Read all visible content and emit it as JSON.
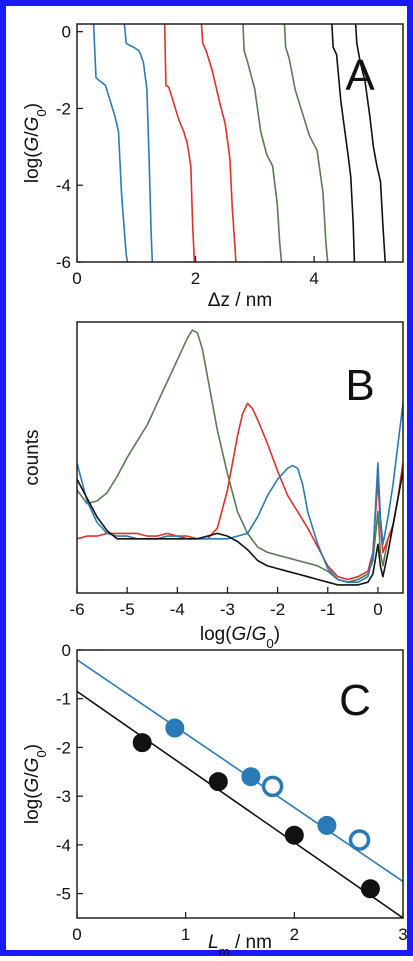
{
  "chart_data": [
    {
      "type": "line",
      "panel_label": "A",
      "xlabel": "Δz / nm",
      "ylabel": "log(G/G0)",
      "xlim": [
        0,
        5.5
      ],
      "ylim": [
        -6,
        0.2
      ],
      "xticks": [
        0,
        2,
        4
      ],
      "yticks": [
        0,
        -2,
        -4,
        -6
      ],
      "grid": false,
      "series": [
        {
          "color": "#2a7ab8",
          "x": [
            0.28,
            0.3,
            0.32,
            0.36,
            0.4,
            0.48,
            0.56,
            0.64,
            0.7,
            0.75,
            0.8,
            0.83,
            0.85
          ],
          "y": [
            0.2,
            -0.5,
            -1.2,
            -1.25,
            -1.3,
            -1.4,
            -1.8,
            -2.2,
            -2.6,
            -4.2,
            -5.2,
            -5.8,
            -6.0
          ]
        },
        {
          "color": "#2a7ab8",
          "x": [
            0.8,
            0.83,
            0.88,
            0.95,
            1.05,
            1.12,
            1.18,
            1.22,
            1.25,
            1.27
          ],
          "y": [
            0.2,
            -0.3,
            -0.35,
            -0.4,
            -0.5,
            -0.8,
            -1.5,
            -3.5,
            -5.2,
            -6.0
          ]
        },
        {
          "color": "#e0302a",
          "x": [
            1.48,
            1.5,
            1.55,
            1.62,
            1.72,
            1.8,
            1.86,
            1.92,
            1.95,
            1.98
          ],
          "y": [
            0.2,
            -1.4,
            -1.45,
            -1.8,
            -2.3,
            -2.6,
            -2.9,
            -3.5,
            -5.0,
            -6.0
          ]
        },
        {
          "color": "#e0302a",
          "x": [
            2.1,
            2.12,
            2.18,
            2.28,
            2.4,
            2.5,
            2.58,
            2.62,
            2.66,
            2.68
          ],
          "y": [
            0.2,
            -0.3,
            -0.5,
            -1.0,
            -1.8,
            -2.4,
            -3.3,
            -4.6,
            -5.5,
            -6.0
          ]
        },
        {
          "color": "#5a7a55",
          "x": [
            2.8,
            2.82,
            2.88,
            3.0,
            3.1,
            3.2,
            3.3,
            3.38,
            3.42,
            3.45
          ],
          "y": [
            0.2,
            -0.5,
            -0.8,
            -1.5,
            -2.6,
            -3.2,
            -3.5,
            -4.5,
            -5.5,
            -6.0
          ]
        },
        {
          "color": "#5a7a55",
          "x": [
            3.5,
            3.52,
            3.58,
            3.68,
            3.8,
            3.92,
            4.05,
            4.15,
            4.2,
            4.23
          ],
          "y": [
            0.2,
            -0.4,
            -0.7,
            -1.5,
            -2.1,
            -2.7,
            -3.1,
            -4.2,
            -5.5,
            -6.0
          ]
        },
        {
          "color": "#111111",
          "x": [
            4.3,
            4.32,
            4.38,
            4.45,
            4.52,
            4.58,
            4.62,
            4.66,
            4.68
          ],
          "y": [
            0.2,
            -0.4,
            -0.6,
            -1.8,
            -2.6,
            -3.3,
            -3.8,
            -5.0,
            -6.0
          ]
        },
        {
          "color": "#111111",
          "x": [
            4.7,
            4.72,
            4.78,
            4.86,
            4.94,
            5.0,
            5.06,
            5.12,
            5.16,
            5.2
          ],
          "y": [
            0.2,
            -0.3,
            -0.8,
            -1.3,
            -2.2,
            -3.0,
            -3.5,
            -3.9,
            -5.0,
            -6.0
          ]
        }
      ]
    },
    {
      "type": "line",
      "panel_label": "B",
      "xlabel": "log(G/G0)",
      "ylabel": "counts",
      "xlim": [
        -6,
        0.5
      ],
      "ylim": [
        0,
        1
      ],
      "xticks": [
        -6,
        -5,
        -4,
        -3,
        -2,
        -1,
        0
      ],
      "yticks": [],
      "grid": false,
      "series": [
        {
          "color": "#5a7a55",
          "x": [
            -6.0,
            -5.8,
            -5.6,
            -5.4,
            -5.2,
            -5.0,
            -4.8,
            -4.6,
            -4.4,
            -4.2,
            -4.0,
            -3.8,
            -3.7,
            -3.6,
            -3.5,
            -3.4,
            -3.2,
            -3.0,
            -2.8,
            -2.6,
            -2.4,
            -2.2,
            -2.0,
            -1.8,
            -1.6,
            -1.4,
            -1.2,
            -1.0,
            -0.8,
            -0.6,
            -0.4,
            -0.2,
            -0.1,
            0.0,
            0.05,
            0.1,
            0.2,
            0.3,
            0.4,
            0.5
          ],
          "y": [
            0.38,
            0.33,
            0.34,
            0.37,
            0.43,
            0.5,
            0.56,
            0.62,
            0.7,
            0.78,
            0.86,
            0.94,
            0.97,
            0.96,
            0.9,
            0.8,
            0.6,
            0.44,
            0.3,
            0.22,
            0.17,
            0.15,
            0.14,
            0.13,
            0.12,
            0.11,
            0.1,
            0.08,
            0.05,
            0.04,
            0.05,
            0.07,
            0.12,
            0.3,
            0.15,
            0.1,
            0.2,
            0.25,
            0.35,
            0.48
          ]
        },
        {
          "color": "#e0302a",
          "x": [
            -6.0,
            -5.8,
            -5.6,
            -5.4,
            -5.2,
            -5.0,
            -4.8,
            -4.6,
            -4.4,
            -4.2,
            -4.0,
            -3.8,
            -3.6,
            -3.4,
            -3.2,
            -3.0,
            -2.8,
            -2.7,
            -2.6,
            -2.5,
            -2.4,
            -2.2,
            -2.0,
            -1.8,
            -1.6,
            -1.4,
            -1.2,
            -1.0,
            -0.8,
            -0.6,
            -0.4,
            -0.2,
            -0.1,
            0.0,
            0.05,
            0.1,
            0.2,
            0.3,
            0.4,
            0.5
          ],
          "y": [
            0.2,
            0.21,
            0.21,
            0.22,
            0.22,
            0.22,
            0.22,
            0.21,
            0.21,
            0.22,
            0.21,
            0.21,
            0.2,
            0.2,
            0.24,
            0.38,
            0.58,
            0.66,
            0.7,
            0.68,
            0.64,
            0.55,
            0.45,
            0.36,
            0.3,
            0.24,
            0.17,
            0.1,
            0.06,
            0.05,
            0.06,
            0.08,
            0.15,
            0.42,
            0.25,
            0.15,
            0.2,
            0.25,
            0.35,
            0.48
          ]
        },
        {
          "color": "#2a7ab8",
          "x": [
            -6.0,
            -5.8,
            -5.6,
            -5.4,
            -5.2,
            -5.0,
            -4.8,
            -4.6,
            -4.4,
            -4.2,
            -4.0,
            -3.8,
            -3.6,
            -3.4,
            -3.2,
            -3.0,
            -2.8,
            -2.6,
            -2.4,
            -2.2,
            -2.0,
            -1.8,
            -1.7,
            -1.6,
            -1.5,
            -1.4,
            -1.2,
            -1.0,
            -0.8,
            -0.6,
            -0.4,
            -0.2,
            -0.1,
            0.0,
            0.05,
            0.1,
            0.2,
            0.3,
            0.4,
            0.5
          ],
          "y": [
            0.48,
            0.34,
            0.26,
            0.22,
            0.21,
            0.21,
            0.2,
            0.2,
            0.2,
            0.21,
            0.21,
            0.2,
            0.2,
            0.2,
            0.2,
            0.2,
            0.21,
            0.22,
            0.28,
            0.36,
            0.42,
            0.46,
            0.47,
            0.46,
            0.4,
            0.3,
            0.18,
            0.09,
            0.05,
            0.04,
            0.04,
            0.06,
            0.14,
            0.48,
            0.28,
            0.18,
            0.28,
            0.4,
            0.55,
            0.7
          ]
        },
        {
          "color": "#111111",
          "x": [
            -6.0,
            -5.8,
            -5.6,
            -5.4,
            -5.2,
            -5.0,
            -4.8,
            -4.6,
            -4.4,
            -4.2,
            -4.0,
            -3.8,
            -3.6,
            -3.4,
            -3.2,
            -3.0,
            -2.8,
            -2.6,
            -2.4,
            -2.2,
            -2.0,
            -1.8,
            -1.6,
            -1.4,
            -1.2,
            -1.0,
            -0.8,
            -0.6,
            -0.4,
            -0.2,
            -0.1,
            0.0,
            0.05,
            0.1,
            0.2,
            0.3,
            0.4,
            0.5
          ],
          "y": [
            0.42,
            0.35,
            0.28,
            0.23,
            0.2,
            0.2,
            0.2,
            0.2,
            0.2,
            0.2,
            0.2,
            0.2,
            0.2,
            0.21,
            0.22,
            0.21,
            0.19,
            0.16,
            0.12,
            0.1,
            0.09,
            0.08,
            0.07,
            0.06,
            0.05,
            0.04,
            0.03,
            0.03,
            0.03,
            0.04,
            0.07,
            0.18,
            0.1,
            0.06,
            0.15,
            0.25,
            0.35,
            0.45
          ]
        }
      ]
    },
    {
      "type": "scatter",
      "panel_label": "C",
      "xlabel": "Lm / nm",
      "ylabel": "log(G/G0)",
      "xlim": [
        0,
        3
      ],
      "ylim": [
        -5.5,
        0
      ],
      "xticks": [
        0,
        1,
        2,
        3
      ],
      "yticks": [
        0,
        -1,
        -2,
        -3,
        -4,
        -5
      ],
      "grid": false,
      "series": [
        {
          "color": "#2a7ab8",
          "filled": true,
          "x": [
            0.9,
            1.6,
            2.3
          ],
          "y": [
            -1.6,
            -2.6,
            -3.6
          ]
        },
        {
          "color": "#2a7ab8",
          "filled": false,
          "x": [
            1.8,
            2.6
          ],
          "y": [
            -2.8,
            -3.9
          ]
        },
        {
          "color": "#111111",
          "filled": true,
          "x": [
            0.6,
            1.3,
            2.0,
            2.7
          ],
          "y": [
            -1.9,
            -2.7,
            -3.8,
            -4.9
          ]
        }
      ],
      "fit_lines": [
        {
          "color": "#2a7ab8",
          "x": [
            0,
            3
          ],
          "y": [
            -0.2,
            -4.75
          ]
        },
        {
          "color": "#111111",
          "x": [
            0,
            3
          ],
          "y": [
            -0.85,
            -5.5
          ]
        }
      ]
    }
  ]
}
